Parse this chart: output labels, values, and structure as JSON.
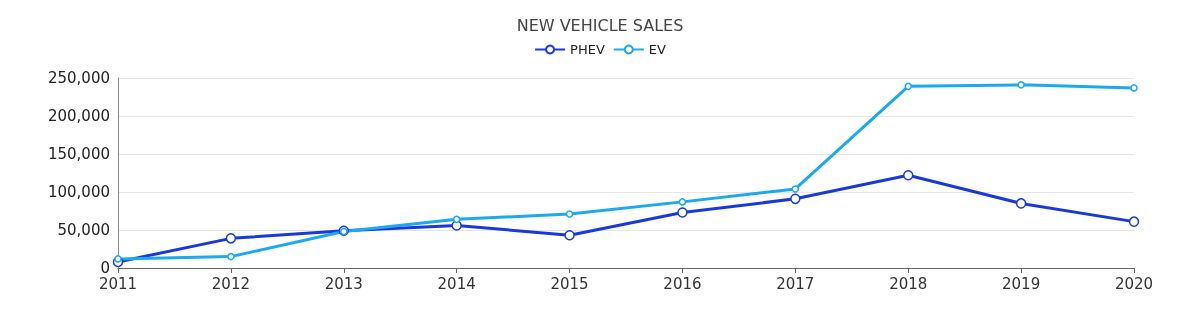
{
  "chart_data": {
    "type": "line",
    "title": "NEW VEHICLE SALES",
    "categories": [
      "2011",
      "2012",
      "2013",
      "2014",
      "2015",
      "2016",
      "2017",
      "2018",
      "2019",
      "2020"
    ],
    "series": [
      {
        "name": "PHEV",
        "color": "#1a3ad8",
        "values": [
          8000,
          39000,
          49000,
          56000,
          43000,
          73000,
          91000,
          122000,
          85000,
          61000
        ]
      },
      {
        "name": "EV",
        "color": "#1ea8f0",
        "values": [
          12000,
          15000,
          48000,
          64000,
          71000,
          87000,
          104000,
          239000,
          241000,
          237000
        ]
      }
    ],
    "ylim": [
      0,
      250000
    ],
    "yticks": [
      0,
      {
        "value": 50000,
        "label": "50,000"
      },
      {
        "value": 100000,
        "label": "100,000"
      },
      {
        "value": 150000,
        "label": "150,000"
      },
      {
        "value": 200000,
        "label": "200,000"
      },
      {
        "value": 250000,
        "label": "250,000"
      }
    ],
    "grid": "y",
    "legend": "top",
    "marker": "circle",
    "line_style": "solid"
  }
}
